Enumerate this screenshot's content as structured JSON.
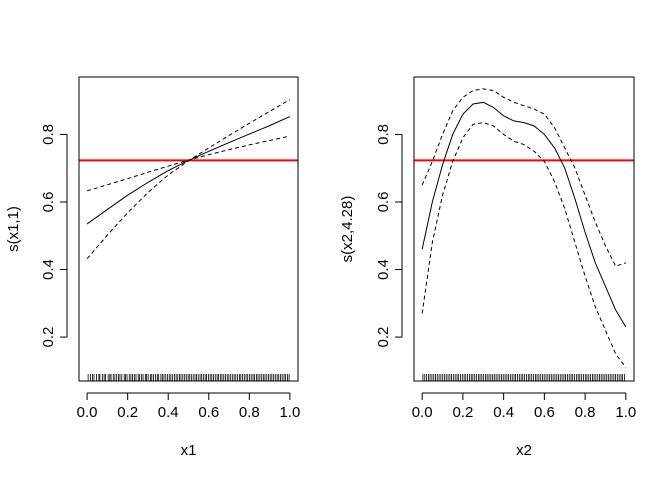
{
  "chart_data": [
    {
      "type": "line",
      "title": "",
      "xlabel": "x1",
      "ylabel": "s(x1,1)",
      "xlim": [
        -0.04,
        1.04
      ],
      "ylim": [
        0.07,
        0.97
      ],
      "xticks": [
        0.0,
        0.2,
        0.4,
        0.6,
        0.8,
        1.0
      ],
      "xtick_labels": [
        "0.0",
        "0.2",
        "0.4",
        "0.6",
        "0.8",
        "1.0"
      ],
      "yticks": [
        0.2,
        0.4,
        0.6,
        0.8
      ],
      "ytick_labels": [
        "0.2",
        "0.4",
        "0.6",
        "0.8"
      ],
      "grid": false,
      "hline": {
        "y": 0.723,
        "color": "#ff0000"
      },
      "series": [
        {
          "style": "solid",
          "x": [
            0.0,
            0.1,
            0.2,
            0.3,
            0.4,
            0.5,
            0.6,
            0.7,
            0.8,
            0.9,
            1.0
          ],
          "values": [
            0.535,
            0.578,
            0.62,
            0.658,
            0.693,
            0.723,
            0.75,
            0.776,
            0.801,
            0.826,
            0.853
          ]
        },
        {
          "style": "dashed",
          "x": [
            0.0,
            0.1,
            0.2,
            0.3,
            0.4,
            0.5,
            0.6,
            0.7,
            0.8,
            0.9,
            1.0
          ],
          "values": [
            0.633,
            0.651,
            0.669,
            0.688,
            0.706,
            0.724,
            0.74,
            0.755,
            0.769,
            0.782,
            0.795
          ]
        },
        {
          "style": "dashed",
          "x": [
            0.0,
            0.1,
            0.2,
            0.3,
            0.4,
            0.5,
            0.6,
            0.7,
            0.8,
            0.9,
            1.0
          ],
          "values": [
            0.432,
            0.502,
            0.568,
            0.628,
            0.68,
            0.722,
            0.76,
            0.797,
            0.833,
            0.868,
            0.903
          ]
        }
      ],
      "rug": [
        0.005,
        0.016,
        0.027,
        0.034,
        0.046,
        0.058,
        0.063,
        0.075,
        0.084,
        0.091,
        0.104,
        0.112,
        0.118,
        0.129,
        0.137,
        0.146,
        0.155,
        0.162,
        0.171,
        0.183,
        0.189,
        0.197,
        0.208,
        0.216,
        0.224,
        0.233,
        0.241,
        0.252,
        0.259,
        0.268,
        0.276,
        0.287,
        0.293,
        0.301,
        0.312,
        0.319,
        0.327,
        0.338,
        0.346,
        0.353,
        0.364,
        0.371,
        0.379,
        0.388,
        0.397,
        0.405,
        0.413,
        0.422,
        0.431,
        0.439,
        0.447,
        0.456,
        0.463,
        0.472,
        0.481,
        0.489,
        0.498,
        0.506,
        0.514,
        0.523,
        0.532,
        0.539,
        0.548,
        0.557,
        0.565,
        0.573,
        0.582,
        0.589,
        0.598,
        0.607,
        0.615,
        0.623,
        0.632,
        0.641,
        0.648,
        0.657,
        0.665,
        0.674,
        0.683,
        0.691,
        0.699,
        0.708,
        0.716,
        0.725,
        0.733,
        0.742,
        0.751,
        0.758,
        0.767,
        0.775,
        0.784,
        0.792,
        0.801,
        0.809,
        0.818,
        0.826,
        0.835,
        0.843,
        0.852,
        0.861,
        0.869,
        0.877,
        0.886,
        0.894,
        0.903,
        0.911,
        0.92,
        0.928,
        0.937,
        0.945,
        0.954,
        0.962,
        0.971,
        0.979,
        0.988,
        0.996
      ]
    },
    {
      "type": "line",
      "title": "",
      "xlabel": "x2",
      "ylabel": "s(x2,4.28)",
      "xlim": [
        -0.04,
        1.04
      ],
      "ylim": [
        0.07,
        0.97
      ],
      "xticks": [
        0.0,
        0.2,
        0.4,
        0.6,
        0.8,
        1.0
      ],
      "xtick_labels": [
        "0.0",
        "0.2",
        "0.4",
        "0.6",
        "0.8",
        "1.0"
      ],
      "yticks": [
        0.2,
        0.4,
        0.6,
        0.8
      ],
      "ytick_labels": [
        "0.2",
        "0.4",
        "0.6",
        "0.8"
      ],
      "grid": false,
      "hline": {
        "y": 0.723,
        "color": "#ff0000"
      },
      "series": [
        {
          "style": "solid",
          "x": [
            0.0,
            0.05,
            0.1,
            0.15,
            0.2,
            0.25,
            0.3,
            0.35,
            0.4,
            0.45,
            0.5,
            0.55,
            0.6,
            0.65,
            0.7,
            0.75,
            0.8,
            0.85,
            0.9,
            0.95,
            1.0
          ],
          "values": [
            0.46,
            0.6,
            0.71,
            0.8,
            0.86,
            0.89,
            0.895,
            0.88,
            0.855,
            0.84,
            0.835,
            0.825,
            0.8,
            0.76,
            0.7,
            0.61,
            0.51,
            0.42,
            0.35,
            0.28,
            0.23
          ]
        },
        {
          "style": "dashed",
          "x": [
            0.0,
            0.05,
            0.1,
            0.15,
            0.2,
            0.25,
            0.3,
            0.35,
            0.4,
            0.45,
            0.5,
            0.55,
            0.6,
            0.65,
            0.7,
            0.75,
            0.8,
            0.85,
            0.9,
            0.95,
            1.0
          ],
          "values": [
            0.65,
            0.72,
            0.8,
            0.87,
            0.91,
            0.93,
            0.935,
            0.93,
            0.91,
            0.895,
            0.885,
            0.875,
            0.86,
            0.82,
            0.76,
            0.7,
            0.62,
            0.54,
            0.47,
            0.41,
            0.42
          ]
        },
        {
          "style": "dashed",
          "x": [
            0.0,
            0.05,
            0.1,
            0.15,
            0.2,
            0.25,
            0.3,
            0.35,
            0.4,
            0.45,
            0.5,
            0.55,
            0.6,
            0.65,
            0.7,
            0.75,
            0.8,
            0.85,
            0.9,
            0.95,
            1.0
          ],
          "values": [
            0.27,
            0.48,
            0.62,
            0.72,
            0.79,
            0.83,
            0.835,
            0.825,
            0.8,
            0.78,
            0.77,
            0.75,
            0.72,
            0.66,
            0.58,
            0.48,
            0.38,
            0.29,
            0.22,
            0.15,
            0.11
          ]
        }
      ],
      "rug": [
        0.004,
        0.013,
        0.022,
        0.031,
        0.039,
        0.048,
        0.057,
        0.066,
        0.074,
        0.083,
        0.092,
        0.101,
        0.109,
        0.118,
        0.127,
        0.136,
        0.144,
        0.153,
        0.162,
        0.171,
        0.179,
        0.188,
        0.197,
        0.206,
        0.214,
        0.223,
        0.232,
        0.241,
        0.249,
        0.258,
        0.267,
        0.276,
        0.284,
        0.293,
        0.302,
        0.311,
        0.319,
        0.328,
        0.337,
        0.346,
        0.354,
        0.363,
        0.372,
        0.381,
        0.389,
        0.398,
        0.407,
        0.416,
        0.424,
        0.433,
        0.442,
        0.451,
        0.459,
        0.468,
        0.477,
        0.486,
        0.494,
        0.503,
        0.512,
        0.521,
        0.529,
        0.538,
        0.547,
        0.556,
        0.564,
        0.573,
        0.582,
        0.591,
        0.599,
        0.608,
        0.617,
        0.626,
        0.634,
        0.643,
        0.652,
        0.661,
        0.669,
        0.678,
        0.687,
        0.696,
        0.704,
        0.713,
        0.722,
        0.731,
        0.739,
        0.748,
        0.757,
        0.766,
        0.774,
        0.783,
        0.792,
        0.801,
        0.809,
        0.818,
        0.827,
        0.836,
        0.844,
        0.853,
        0.862,
        0.871,
        0.879,
        0.888,
        0.897,
        0.906,
        0.914,
        0.923,
        0.932,
        0.941,
        0.949,
        0.958,
        0.967,
        0.976,
        0.984,
        0.993
      ]
    }
  ]
}
